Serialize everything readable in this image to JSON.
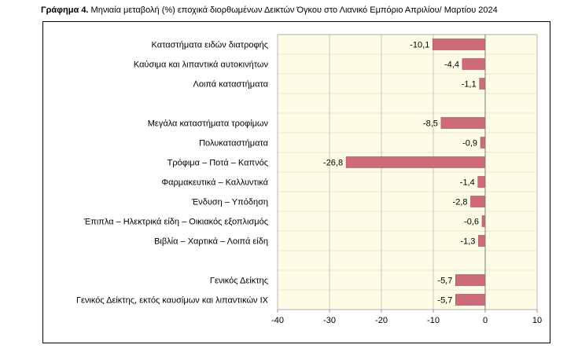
{
  "title_bold": "Γράφημα 4.",
  "title_rest": " Μηνιαία μεταβολή (%) εποχικά διορθωμένων Δεικτών Όγκου στο Λιανικό Εμπόριο Απριλίου/ Μαρτίου 2024",
  "colors": {
    "plot_bg": "#fefce6",
    "bar": "#cd6b7b",
    "bar_stroke": "#a94a5b"
  },
  "chart_data": {
    "type": "bar",
    "orientation": "horizontal",
    "title": "Μηνιαία μεταβολή (%) εποχικά διορθωμένων Δεικτών Όγκου στο Λιανικό Εμπόριο Απριλίου/ Μαρτίου 2024",
    "categories": [
      "Καταστήματα ειδών διατροφής",
      "Καύσιμα και λιπαντικά αυτοκινήτων",
      "Λοιπά καταστήματα",
      "",
      "Μεγάλα καταστήματα τροφίμων",
      "Πολυκαταστήματα",
      "Τρόφιμα – Ποτά – Καπνός",
      "Φαρμακευτικά – Καλλυντικά",
      "Ένδυση – Υπόδηση",
      "Έπιπλα – Ηλεκτρικά είδη – Οικιακός εξοπλισμός",
      "Βιβλία – Χαρτικά – Λοιπά είδη",
      "",
      "Γενικός Δείκτης",
      "Γενικός Δείκτης, εκτός καυσίμων και λιπαντικών ΙΧ"
    ],
    "values": [
      -10.1,
      -4.4,
      -1.1,
      null,
      -8.5,
      -0.9,
      -26.8,
      -1.4,
      -2.8,
      -0.6,
      -1.3,
      null,
      -5.7,
      -5.7
    ],
    "value_labels": [
      "-10,1",
      "-4,4",
      "-1,1",
      "",
      "-8,5",
      "-0,9",
      "-26,8",
      "-1,4",
      "-2,8",
      "-0,6",
      "-1,3",
      "",
      "-5,7",
      "-5,7"
    ],
    "xlim": [
      -40,
      10
    ],
    "xticks": [
      -40,
      -30,
      -20,
      -10,
      0,
      10
    ],
    "xtick_labels": [
      "-40",
      "-30",
      "-20",
      "-10",
      "0",
      "10"
    ],
    "grid": "vertical",
    "legend": "none"
  }
}
